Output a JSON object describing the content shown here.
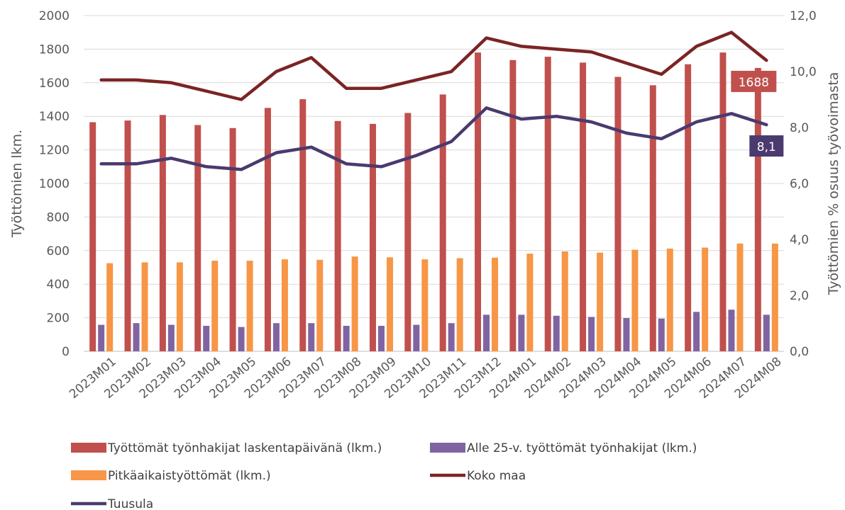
{
  "chart_data": {
    "type": "bar",
    "categories": [
      "2023M01",
      "2023M02",
      "2023M03",
      "2023M04",
      "2023M05",
      "2023M06",
      "2023M07",
      "2023M08",
      "2023M09",
      "2023M10",
      "2023M11",
      "2023M12",
      "2024M01",
      "2024M02",
      "2024M03",
      "2024M04",
      "2024M05",
      "2024M06",
      "2024M07",
      "2024M08"
    ],
    "ylabel": "Työttömien lkm.",
    "y2label": "Työttömien % osuus työvoimasta",
    "ylim": [
      0,
      2000
    ],
    "y2lim": [
      0,
      12
    ],
    "yticks": [
      "0",
      "200",
      "400",
      "600",
      "800",
      "1000",
      "1200",
      "1400",
      "1600",
      "1800",
      "2000"
    ],
    "y2ticks": [
      "0,0",
      "2,0",
      "4,0",
      "6,0",
      "8,0",
      "10,0",
      "12,0"
    ],
    "grid": true,
    "legend_position": "bottom",
    "series": [
      {
        "name": "Työttömät työnhakijat laskentapäivänä (lkm.)",
        "type": "bar",
        "axis": "left",
        "color": "#C0504D",
        "values": [
          1365,
          1375,
          1408,
          1348,
          1330,
          1450,
          1502,
          1372,
          1355,
          1420,
          1530,
          1780,
          1735,
          1755,
          1720,
          1635,
          1585,
          1710,
          1780,
          1688
        ]
      },
      {
        "name": "Alle 25-v. työttömät työnhakijat (lkm.)",
        "type": "bar",
        "axis": "left",
        "color": "#8064A2",
        "values": [
          158,
          168,
          158,
          152,
          145,
          168,
          168,
          152,
          152,
          158,
          168,
          218,
          218,
          212,
          205,
          198,
          195,
          235,
          248,
          218
        ]
      },
      {
        "name": "Pitkäaikaistyöttömät (lkm.)",
        "type": "bar",
        "axis": "left",
        "color": "#F79646",
        "values": [
          525,
          530,
          530,
          540,
          540,
          548,
          545,
          565,
          560,
          548,
          555,
          558,
          582,
          595,
          588,
          605,
          612,
          618,
          642,
          642
        ]
      },
      {
        "name": "Koko maa",
        "type": "line",
        "axis": "right",
        "color": "#7B2424",
        "values": [
          9.7,
          9.7,
          9.6,
          9.3,
          9.0,
          10.0,
          10.5,
          9.4,
          9.4,
          9.7,
          10.0,
          11.2,
          10.9,
          10.8,
          10.7,
          10.3,
          9.9,
          10.9,
          11.4,
          10.4
        ]
      },
      {
        "name": "Tuusula",
        "type": "line",
        "axis": "right",
        "color": "#4A3A6E",
        "values": [
          6.7,
          6.7,
          6.9,
          6.6,
          6.5,
          7.1,
          7.3,
          6.7,
          6.6,
          7.0,
          7.5,
          8.7,
          8.3,
          8.4,
          8.2,
          7.8,
          7.6,
          8.2,
          8.5,
          8.1
        ]
      }
    ],
    "annotations": [
      {
        "text": "1688",
        "series": "Työttömät työnhakijat laskentapäivänä (lkm.)",
        "index": 19,
        "color": "#C0504D"
      },
      {
        "text": "8,1",
        "series": "Tuusula",
        "index": 19,
        "color": "#4A3A6E"
      }
    ]
  }
}
